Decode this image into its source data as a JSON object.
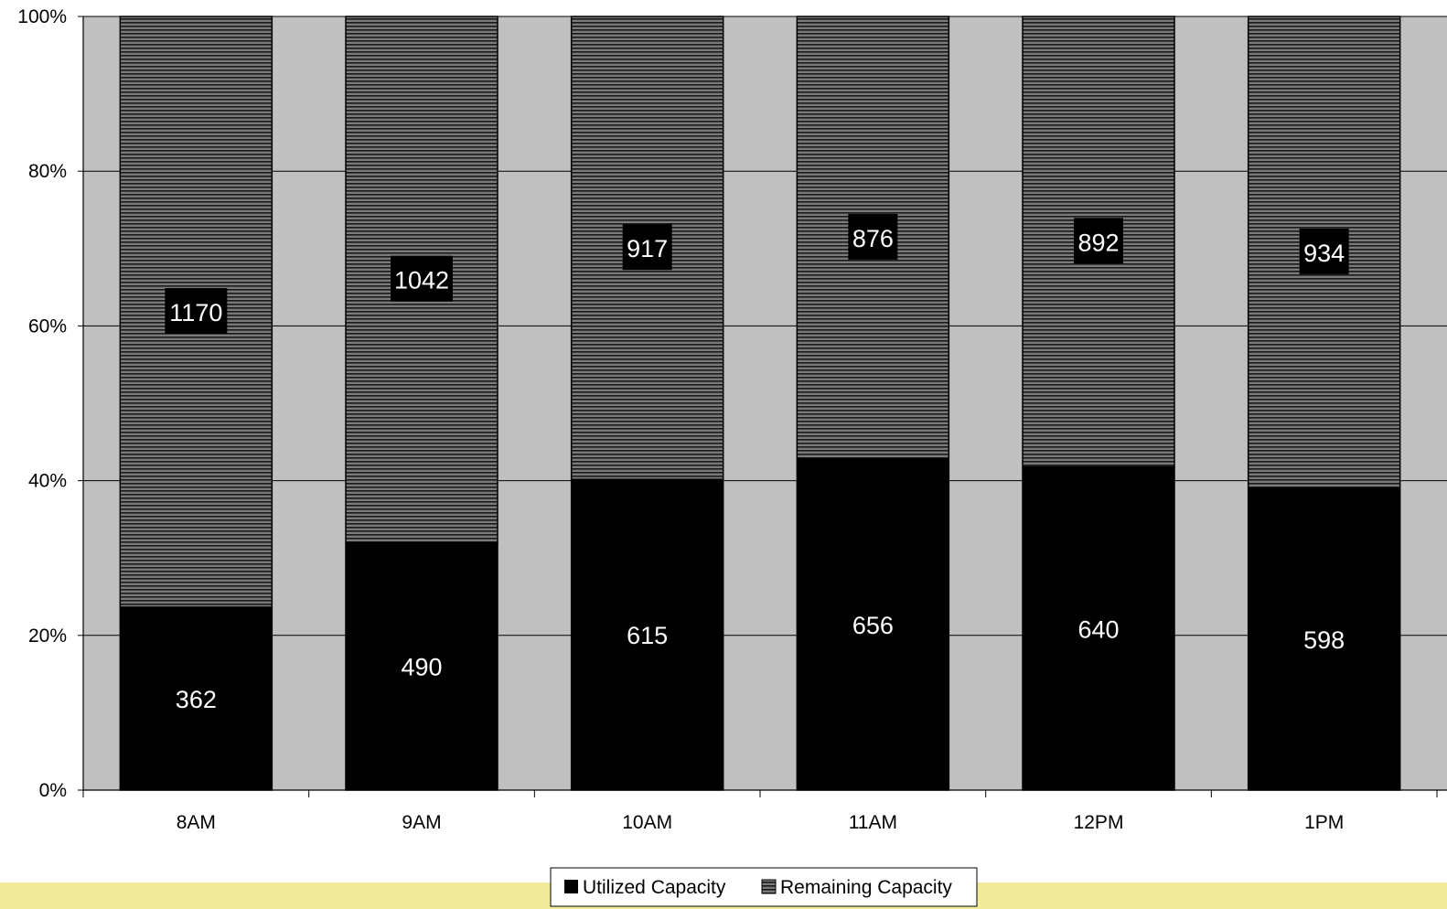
{
  "colors": {
    "plot_background": "#c0c0c0",
    "utilized": "#000000",
    "remaining_base": "#7a7a7a",
    "remaining_stripe": "#1a1a1a",
    "footer_band": "#f0ec9c",
    "gridline": "#000000"
  },
  "chart_data": {
    "type": "bar",
    "stacking": "percent",
    "categories": [
      "8AM",
      "9AM",
      "10AM",
      "11AM",
      "12PM",
      "1PM"
    ],
    "series": [
      {
        "name": "Utilized Capacity",
        "values": [
          362,
          490,
          615,
          656,
          640,
          598
        ]
      },
      {
        "name": "Remaining Capacity",
        "values": [
          1170,
          1042,
          917,
          876,
          892,
          934
        ]
      }
    ],
    "ylim": [
      0,
      100
    ],
    "y_ticks": [
      "0%",
      "20%",
      "40%",
      "60%",
      "80%",
      "100%"
    ],
    "grid": true,
    "legend_position": "bottom-center"
  }
}
